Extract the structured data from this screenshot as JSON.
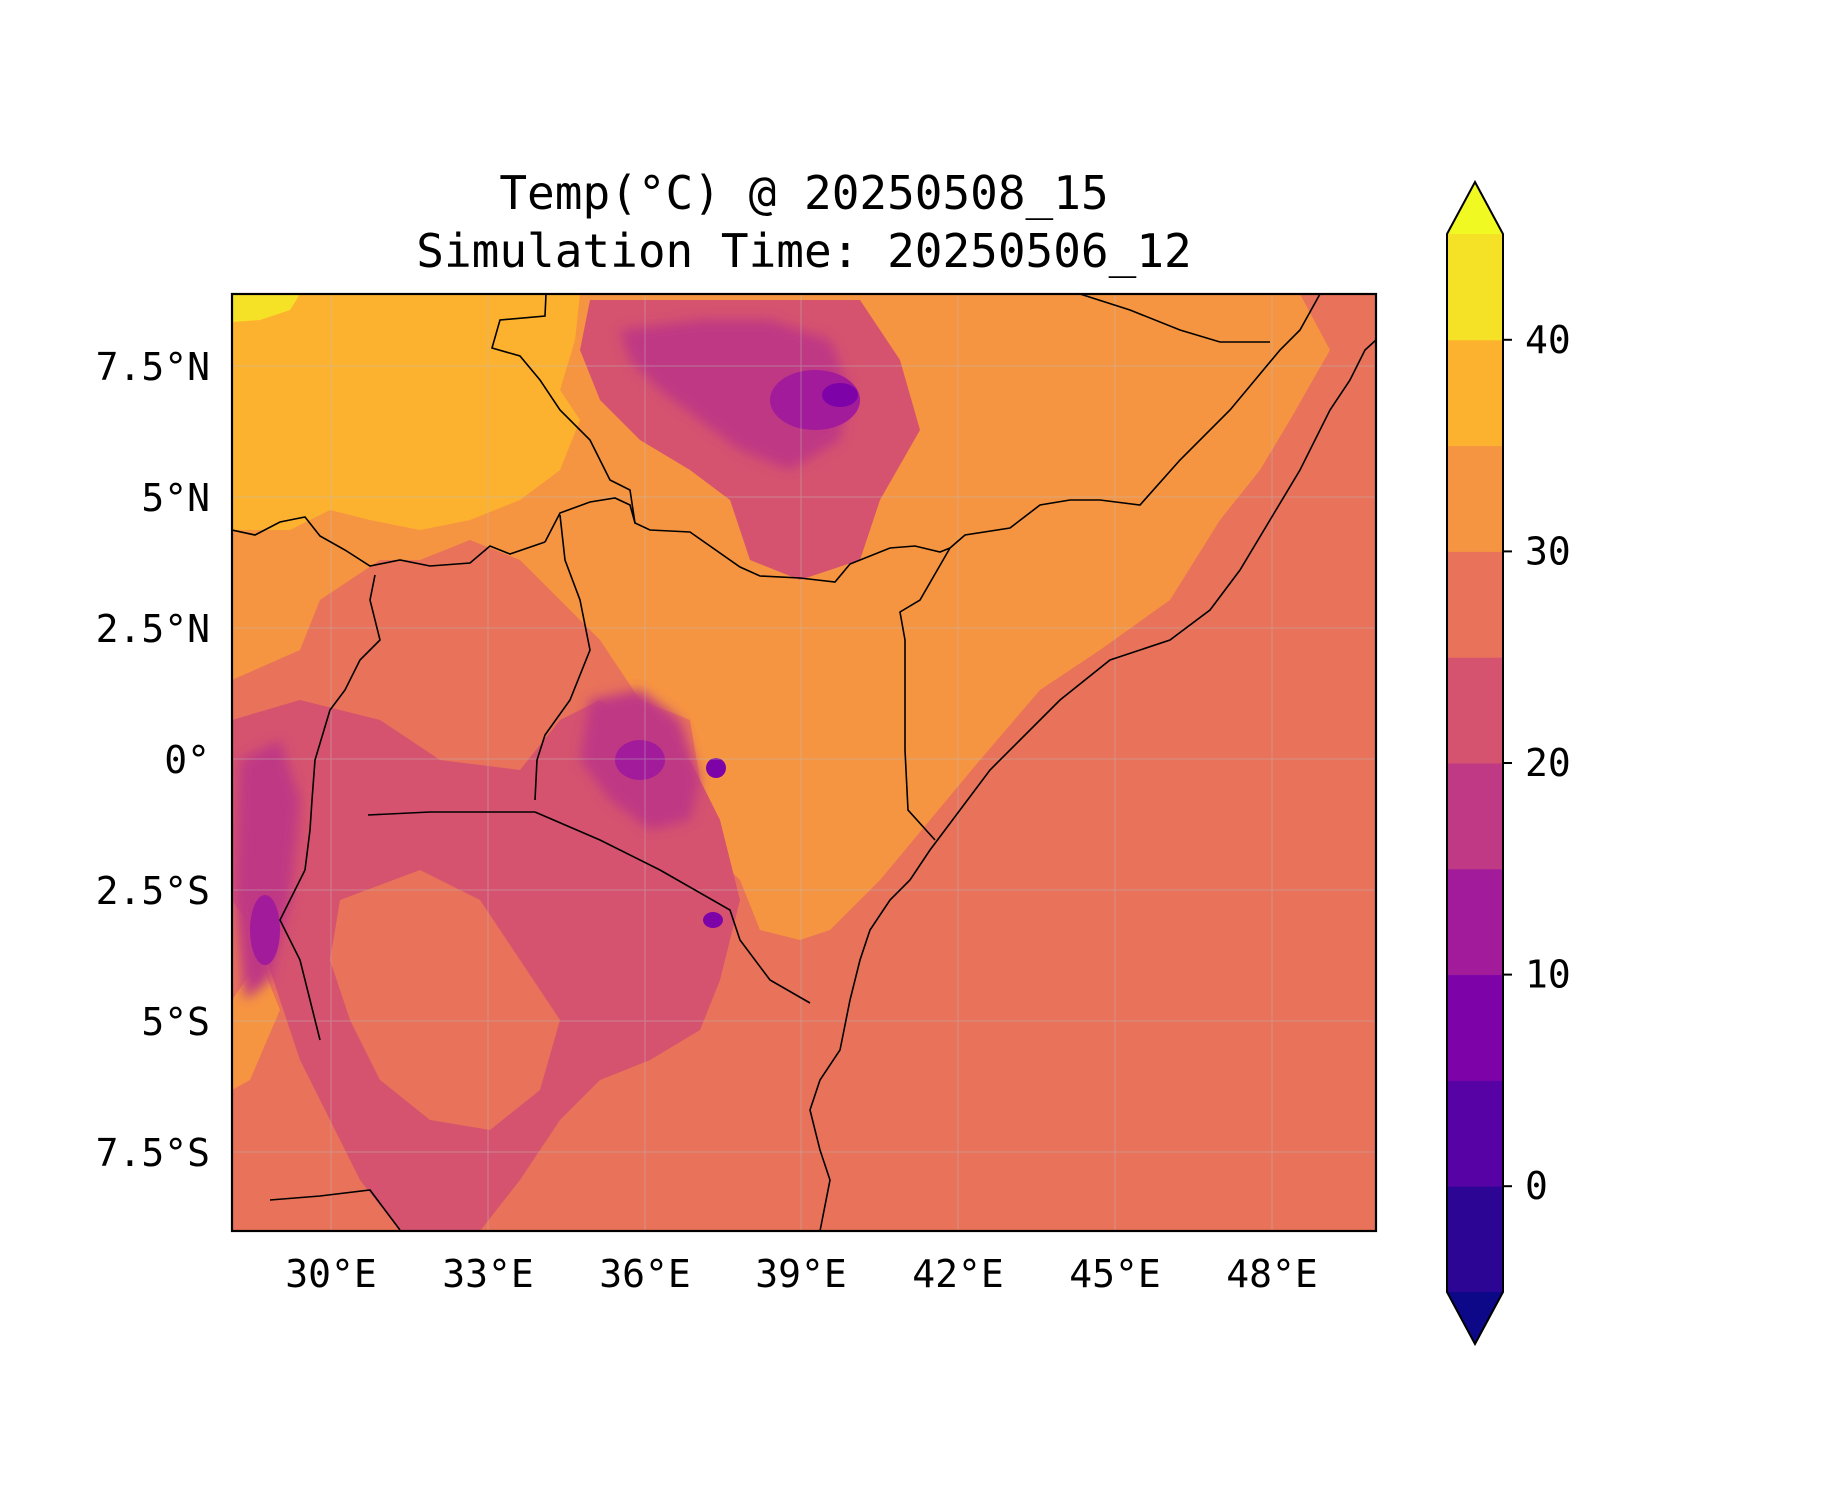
{
  "title": {
    "line1": "Temp(°C) @ 20250508_15",
    "line2": "Simulation Time: 20250506_12"
  },
  "map": {
    "projection": "PlateCarree",
    "extent": {
      "lon": [
        28.0,
        50.0
      ],
      "lat": [
        -9.0,
        9.0
      ]
    },
    "gridlines": true,
    "x_tick_labels": [
      {
        "lon": 30,
        "text": "30°E"
      },
      {
        "lon": 33,
        "text": "33°E"
      },
      {
        "lon": 36,
        "text": "36°E"
      },
      {
        "lon": 39,
        "text": "39°E"
      },
      {
        "lon": 42,
        "text": "42°E"
      },
      {
        "lon": 45,
        "text": "45°E"
      },
      {
        "lon": 48,
        "text": "48°E"
      }
    ],
    "y_tick_labels": [
      {
        "lat": 7.5,
        "text": "7.5°N"
      },
      {
        "lat": 5,
        "text": "5°N"
      },
      {
        "lat": 2.5,
        "text": "2.5°N"
      },
      {
        "lat": 0,
        "text": "0°"
      },
      {
        "lat": -2.5,
        "text": "2.5°S"
      },
      {
        "lat": -5,
        "text": "5°S"
      },
      {
        "lat": -7.5,
        "text": "7.5°S"
      }
    ]
  },
  "colorbar": {
    "colormap": "plasma",
    "range": [
      -5,
      45
    ],
    "extend": "both",
    "levels": [
      {
        "lo": -5,
        "hi": 0,
        "color": "#2d0594"
      },
      {
        "lo": 0,
        "hi": 5,
        "color": "#5602a4"
      },
      {
        "lo": 5,
        "hi": 10,
        "color": "#7d03a8"
      },
      {
        "lo": 10,
        "hi": 15,
        "color": "#a11b9b"
      },
      {
        "lo": 15,
        "hi": 20,
        "color": "#bf3984"
      },
      {
        "lo": 20,
        "hi": 25,
        "color": "#d5536f"
      },
      {
        "lo": 25,
        "hi": 30,
        "color": "#e8725a"
      },
      {
        "lo": 30,
        "hi": 35,
        "color": "#f69541"
      },
      {
        "lo": 35,
        "hi": 40,
        "color": "#fdb22f"
      },
      {
        "lo": 40,
        "hi": 45,
        "color": "#f5e126"
      }
    ],
    "under_color": "#0d0887",
    "over_color": "#f0f921",
    "ticks": [
      {
        "value": 0,
        "text": "0"
      },
      {
        "value": 10,
        "text": "10"
      },
      {
        "value": 20,
        "text": "20"
      },
      {
        "value": 30,
        "text": "30"
      },
      {
        "value": 40,
        "text": "40"
      }
    ]
  },
  "colors": {
    "ocean": "#e8725a",
    "border_line": "#000000"
  }
}
